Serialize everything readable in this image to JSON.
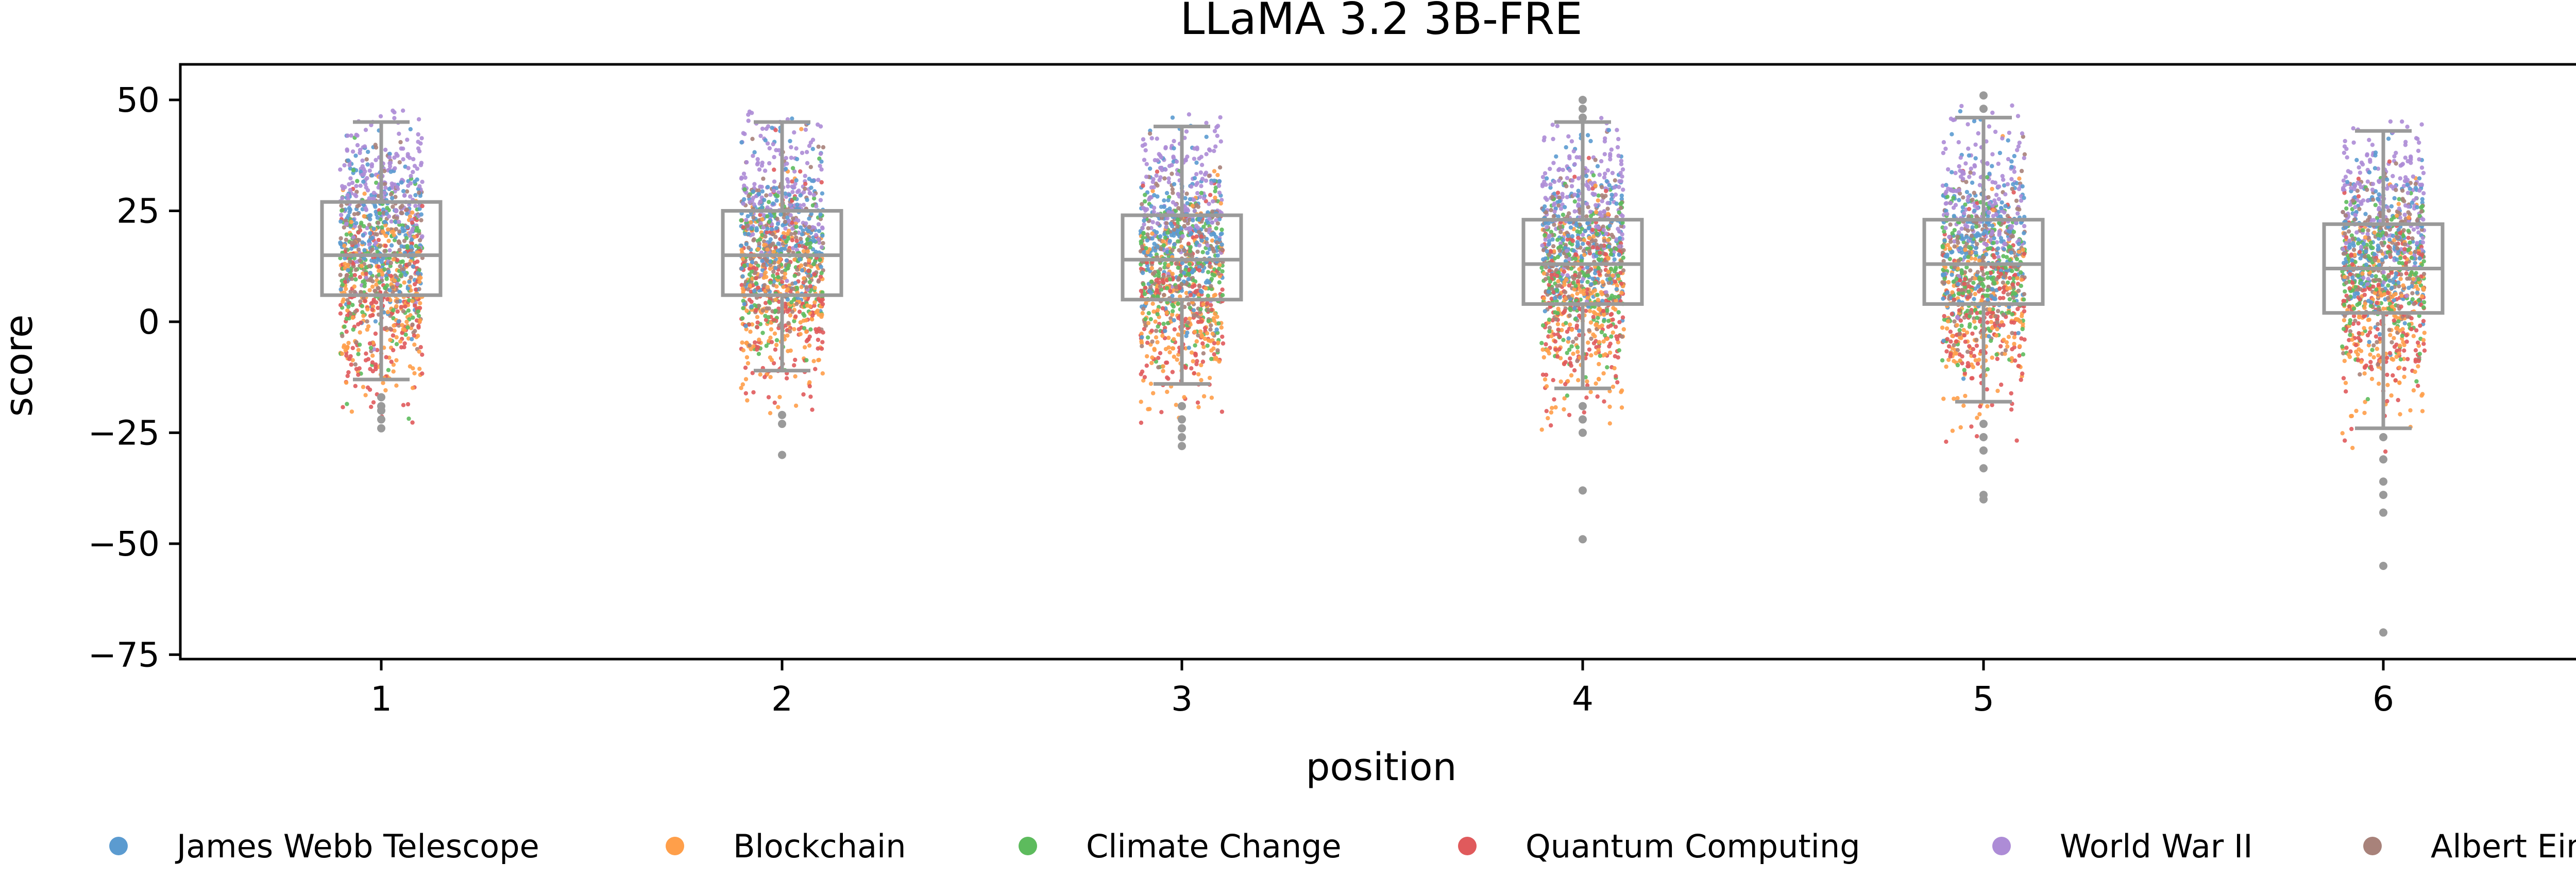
{
  "chart_data": {
    "type": "box-strip",
    "title": "LLaMA 3.2 3B-FRE",
    "xlabel": "position",
    "ylabel": "score",
    "categories": [
      "1",
      "2",
      "3",
      "4",
      "5",
      "6"
    ],
    "yticks": [
      "50",
      "25",
      "0",
      "−25",
      "−50",
      "−75"
    ],
    "ylim": [
      -76,
      58
    ],
    "boxes": [
      {
        "position": "1",
        "q1": 6,
        "median": 15,
        "q3": 27,
        "whisker_low": -13,
        "whisker_high": 45,
        "outliers": [
          -17,
          -19,
          -20,
          -22,
          -24
        ]
      },
      {
        "position": "2",
        "q1": 6,
        "median": 15,
        "q3": 25,
        "whisker_low": -11,
        "whisker_high": 45,
        "outliers": [
          -21,
          -23,
          -30
        ]
      },
      {
        "position": "3",
        "q1": 5,
        "median": 14,
        "q3": 24,
        "whisker_low": -14,
        "whisker_high": 44,
        "outliers": [
          -19,
          -22,
          -24,
          -26,
          -28
        ]
      },
      {
        "position": "4",
        "q1": 4,
        "median": 13,
        "q3": 23,
        "whisker_low": -15,
        "whisker_high": 45,
        "outliers": [
          46,
          48,
          50,
          -19,
          -22,
          -25,
          -38,
          -49
        ]
      },
      {
        "position": "5",
        "q1": 4,
        "median": 13,
        "q3": 23,
        "whisker_low": -18,
        "whisker_high": 46,
        "outliers": [
          48,
          51,
          -23,
          -26,
          -29,
          -33,
          -39,
          -40
        ]
      },
      {
        "position": "6",
        "q1": 2,
        "median": 12,
        "q3": 22,
        "whisker_low": -24,
        "whisker_high": 43,
        "outliers": [
          -26,
          -31,
          -36,
          -39,
          -43,
          -55,
          -70
        ]
      }
    ],
    "series": [
      {
        "name": "James Webb Telescope",
        "color": "#5b9bd0",
        "center": 20,
        "spread": 10
      },
      {
        "name": "Blockchain",
        "color": "#ff9f4a",
        "center": 4,
        "spread": 11
      },
      {
        "name": "Climate Change",
        "color": "#5dbb5d",
        "center": 12,
        "spread": 9
      },
      {
        "name": "Quantum Computing",
        "color": "#e05a5c",
        "center": 4,
        "spread": 11
      },
      {
        "name": "World War II",
        "color": "#ad8cd6",
        "center": 30,
        "spread": 9
      },
      {
        "name": "Albert Einstein",
        "color": "#a8827a",
        "center": 16,
        "spread": 10
      }
    ],
    "grid": false,
    "legend_position": "bottom"
  }
}
